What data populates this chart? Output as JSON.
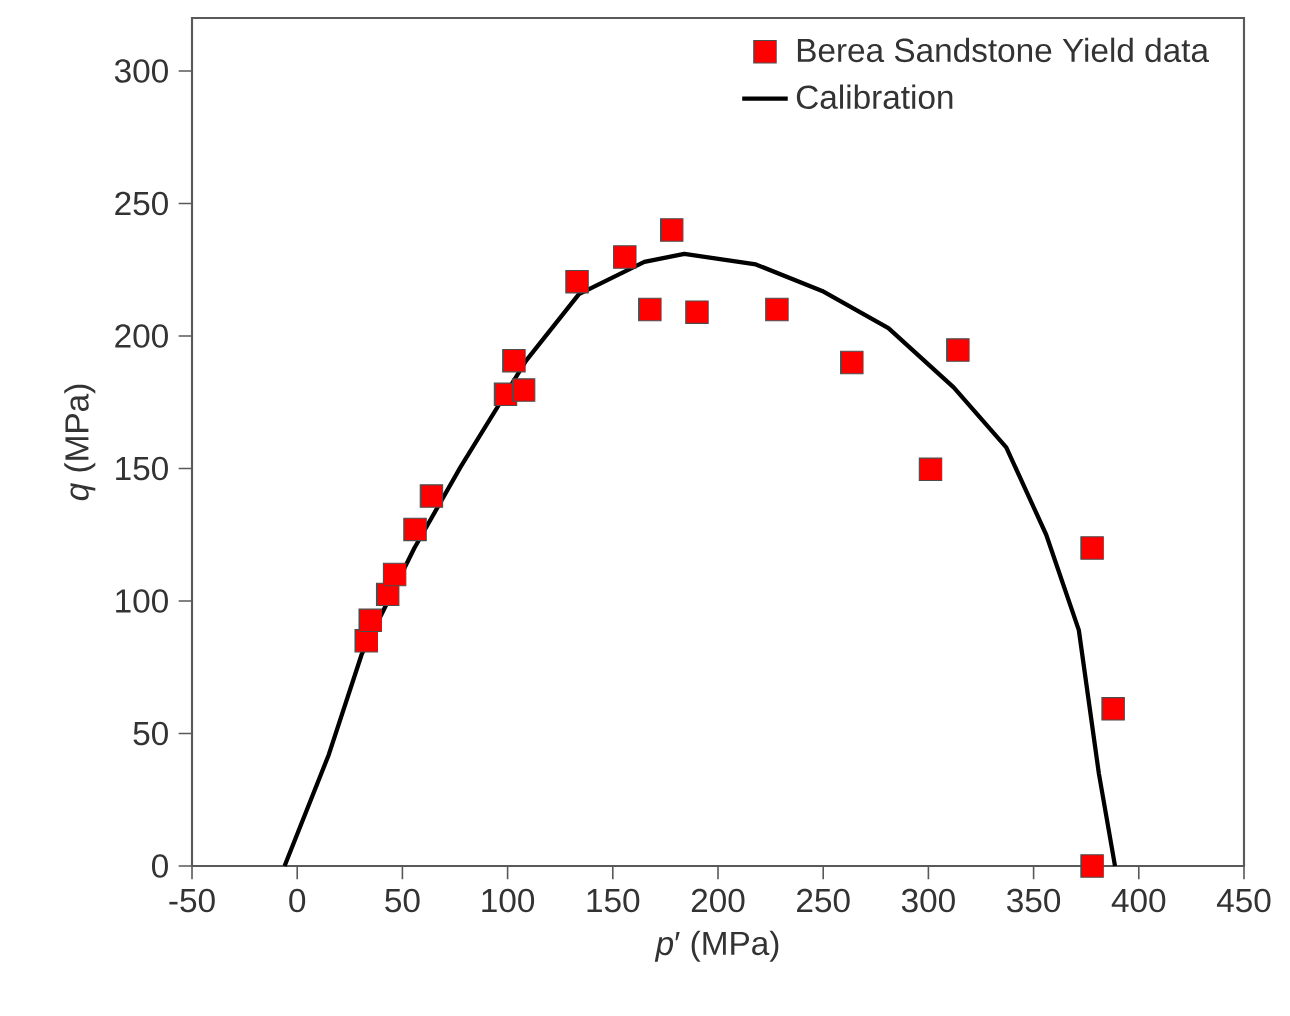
{
  "chart_data": {
    "type": "scatter",
    "xlabel": "*p*′ (MPa)",
    "ylabel": "*q* (MPa)",
    "xlim": [
      -50,
      450
    ],
    "ylim": [
      0,
      320
    ],
    "xticks": [
      -50,
      0,
      50,
      100,
      150,
      200,
      250,
      300,
      350,
      400,
      450
    ],
    "yticks": [
      0,
      50,
      100,
      150,
      200,
      250,
      300
    ],
    "legend": "top right",
    "grid": false,
    "series": [
      {
        "name": "Berea Sandstone Yield data",
        "marker": "square",
        "color": "#ff0000",
        "x": [
          32.8,
          34.7,
          43,
          46.3,
          56,
          63.8,
          99,
          103,
          107.6,
          133,
          155.7,
          167.6,
          178,
          190,
          228,
          263.6,
          301,
          314,
          377.8,
          377.8,
          387.8
        ],
        "values": [
          85,
          92.7,
          102.5,
          110,
          127,
          139.6,
          178,
          190.7,
          179.6,
          220.5,
          229.8,
          210,
          240,
          209,
          210,
          190,
          149.7,
          194.7,
          120,
          0,
          59.3
        ]
      },
      {
        "name": "Calibration",
        "type": "line",
        "color": "#000000",
        "x": [
          -6,
          15,
          30.7,
          55.7,
          77.6,
          108.8,
          133.9,
          165,
          184,
          218,
          249.5,
          281,
          312,
          337,
          356,
          371.5,
          381,
          388.7
        ],
        "values": [
          0,
          42,
          80,
          120,
          150.5,
          190.7,
          215.8,
          228,
          231,
          227,
          217,
          203,
          180.6,
          158,
          125,
          89,
          35,
          0
        ]
      }
    ]
  }
}
